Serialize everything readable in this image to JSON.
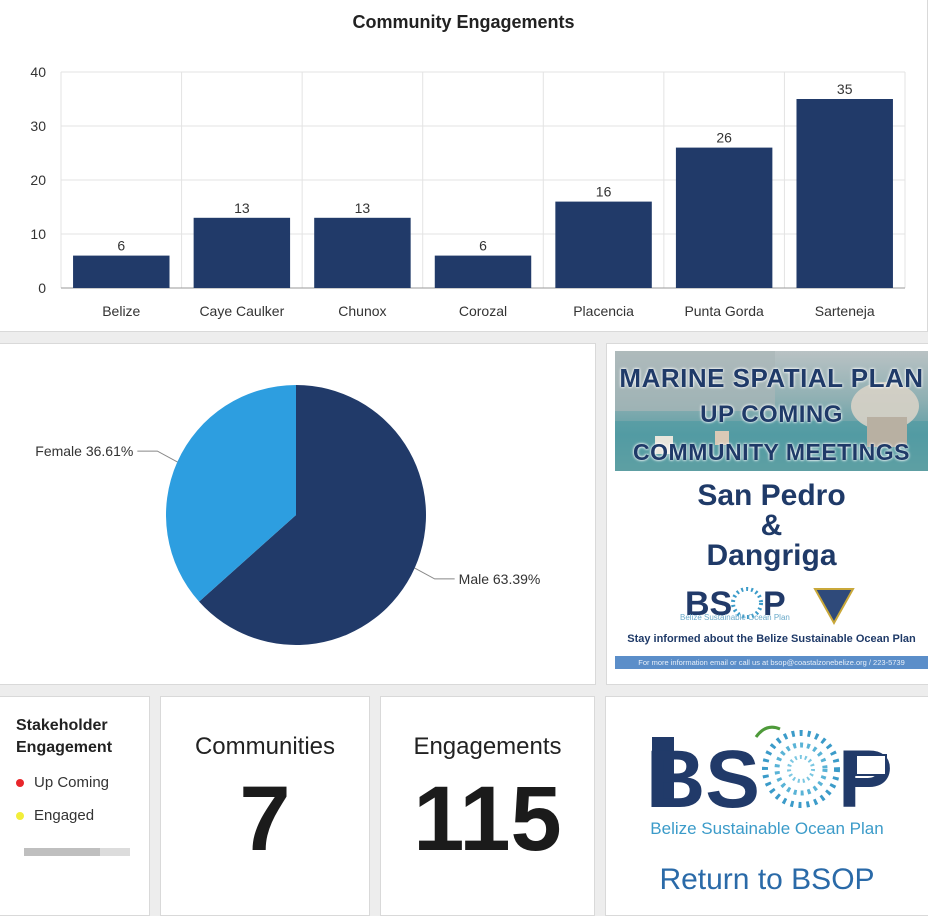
{
  "bar_chart": {
    "chart_data": {
      "type": "bar",
      "title": "Community Engagements",
      "categories": [
        "Belize",
        "Caye Caulker",
        "Chunox",
        "Corozal",
        "Placencia",
        "Punta Gorda",
        "Sarteneja"
      ],
      "values": [
        6,
        13,
        13,
        6,
        16,
        26,
        35
      ],
      "ylim": [
        0,
        40
      ],
      "yticks": [
        0,
        10,
        20,
        30,
        40
      ],
      "grid": true,
      "color": "#213a69"
    }
  },
  "pie_chart": {
    "chart_data": {
      "type": "pie",
      "slices": [
        {
          "label": "Male 63.39%",
          "value": 63.39,
          "color": "#213a69"
        },
        {
          "label": "Female 36.61%",
          "value": 36.61,
          "color": "#2d9ee0"
        }
      ]
    }
  },
  "poster": {
    "line1": "MARINE SPATIAL PLAN",
    "line2": "UP COMING",
    "line3": "COMMUNITY MEETINGS",
    "city1": "San Pedro",
    "amp": "&",
    "city2": "Dangriga",
    "logo_text": "Belize Sustainable Ocean Plan",
    "subtitle": "Stay informed about the Belize Sustainable Ocean Plan",
    "footer": "For more information email or call us at bsop@coastalzonebelize.org / 223-5739"
  },
  "legend": {
    "title": "Stakeholder Engagement",
    "items": [
      {
        "label": "Up Coming",
        "color": "#e8262b"
      },
      {
        "label": "Engaged",
        "color": "#f2ee3a"
      }
    ]
  },
  "indicators": {
    "communities": {
      "title": "Communities",
      "value": "7"
    },
    "engagements": {
      "title": "Engagements",
      "value": "115"
    }
  },
  "bsop_logo": {
    "caption": "Belize Sustainable Ocean Plan",
    "link_label": "Return to BSOP",
    "dark_color": "#213a69",
    "light_color": "#3b9bc9"
  }
}
